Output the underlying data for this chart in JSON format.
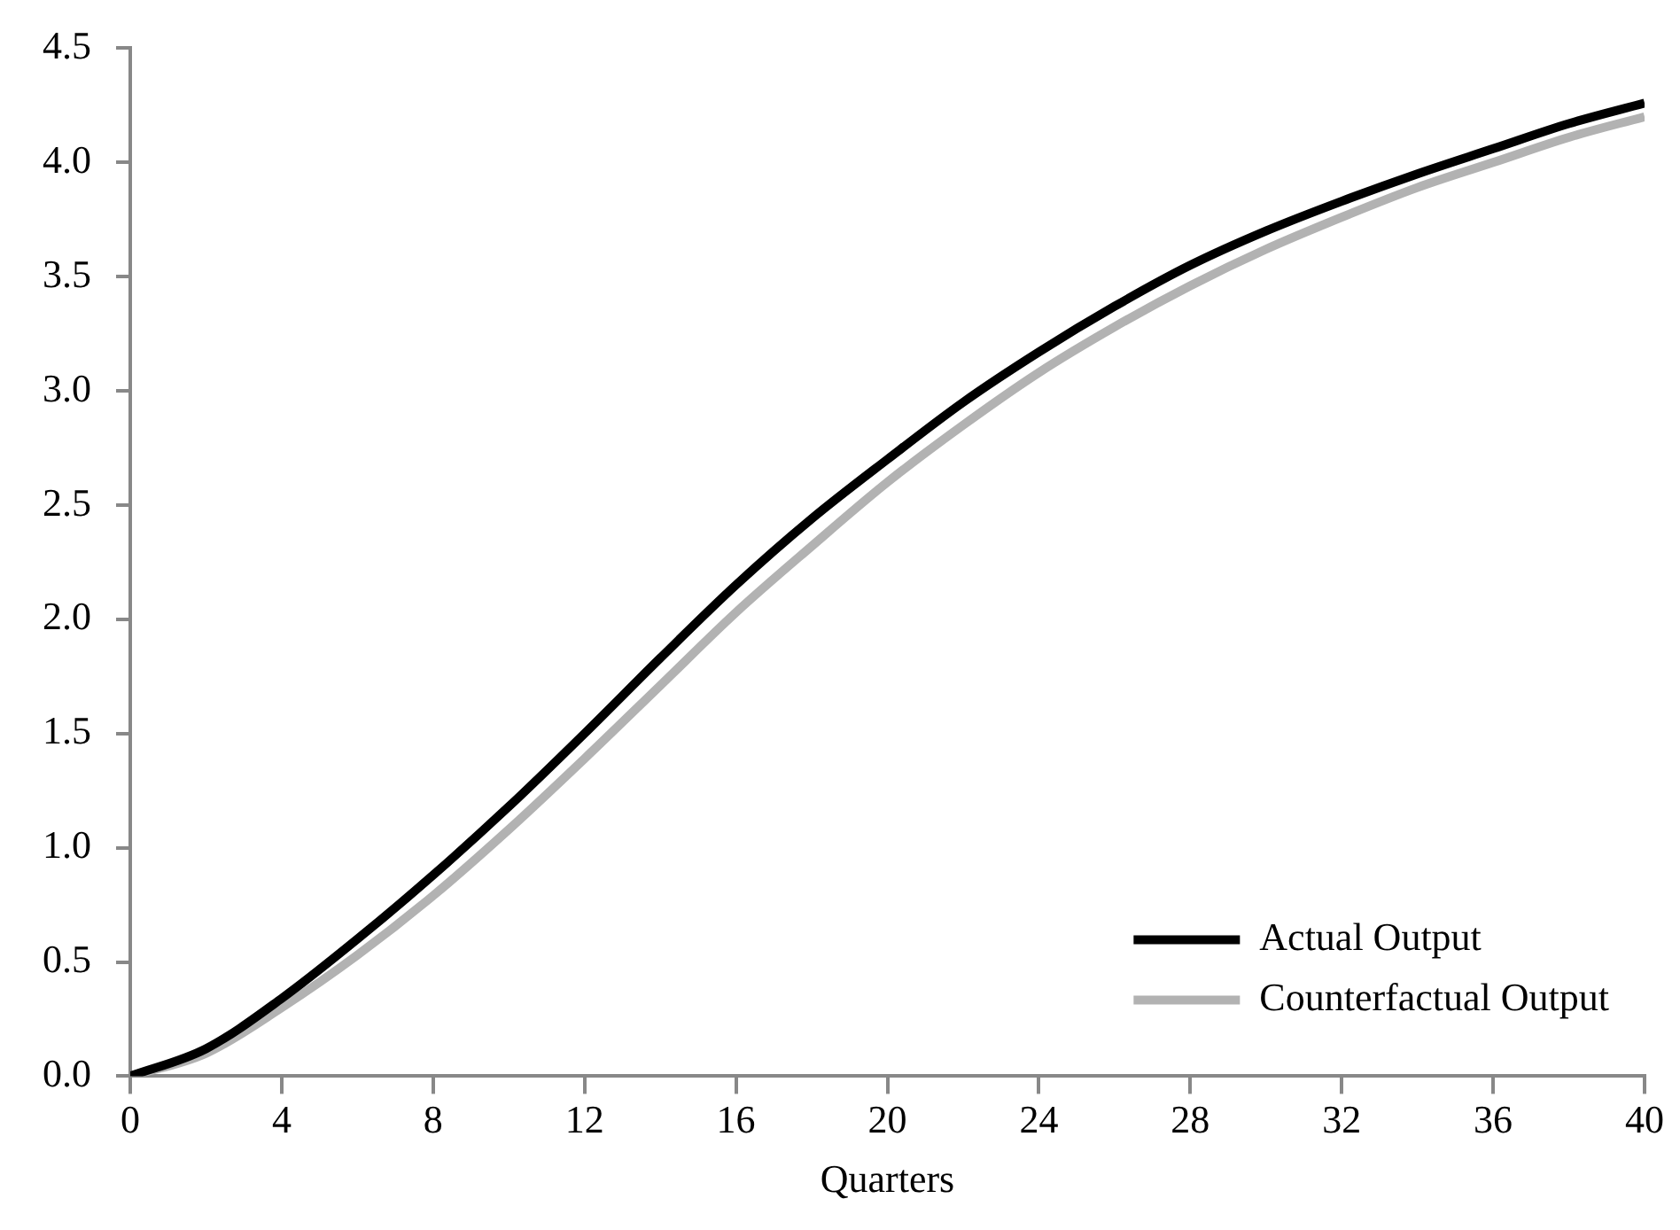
{
  "chart_data": {
    "type": "line",
    "xlabel": "Quarters",
    "x": [
      0,
      2,
      4,
      6,
      8,
      10,
      12,
      14,
      16,
      18,
      20,
      22,
      24,
      26,
      28,
      30,
      32,
      34,
      36,
      38,
      40
    ],
    "series": [
      {
        "name": "Actual Output",
        "color": "#000000",
        "values": [
          0,
          0.12,
          0.34,
          0.6,
          0.88,
          1.18,
          1.5,
          1.83,
          2.15,
          2.44,
          2.7,
          2.95,
          3.17,
          3.37,
          3.55,
          3.7,
          3.83,
          3.95,
          4.06,
          4.17,
          4.26
        ]
      },
      {
        "name": "Counterfactual Output",
        "color": "#b2b2b2",
        "values": [
          0,
          0.1,
          0.3,
          0.53,
          0.79,
          1.08,
          1.39,
          1.71,
          2.03,
          2.32,
          2.6,
          2.85,
          3.08,
          3.28,
          3.46,
          3.62,
          3.76,
          3.89,
          4.0,
          4.11,
          4.2
        ]
      }
    ],
    "xlim": [
      0,
      40
    ],
    "xticks": [
      0,
      4,
      8,
      12,
      16,
      20,
      24,
      28,
      32,
      36,
      40
    ],
    "ylim": [
      0,
      4.5
    ],
    "yticks": [
      {
        "value": 0,
        "label": "0.0"
      },
      {
        "value": 0.5,
        "label": "0.5"
      },
      {
        "value": 1,
        "label": "1.0"
      },
      {
        "value": 1.5,
        "label": "1.5"
      },
      {
        "value": 2,
        "label": "2.0"
      },
      {
        "value": 2.5,
        "label": "2.5"
      },
      {
        "value": 3,
        "label": "3.0"
      },
      {
        "value": 3.5,
        "label": "3.5"
      },
      {
        "value": 4,
        "label": "4.0"
      },
      {
        "value": 4.5,
        "label": "4.5"
      }
    ],
    "grid": false,
    "legend": "bottom right",
    "marker": "none",
    "line_style": "solid"
  }
}
